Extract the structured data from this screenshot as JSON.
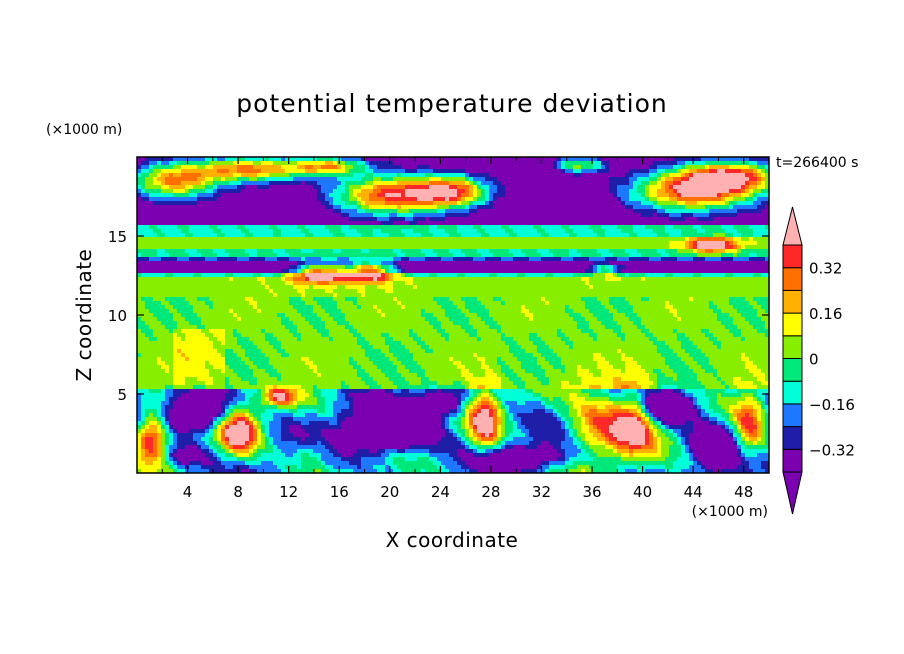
{
  "chart_data": {
    "type": "heatmap",
    "title": "potential temperature deviation",
    "xlabel": "X coordinate",
    "ylabel": "Z coordinate",
    "x_unit": "(×1000 m)",
    "y_unit": "(×1000 m)",
    "time_label": "t=266400 s",
    "xlim": [
      0,
      50
    ],
    "ylim": [
      0,
      20
    ],
    "x_ticks": [
      4,
      8,
      12,
      16,
      20,
      24,
      28,
      32,
      36,
      40,
      44,
      48
    ],
    "y_ticks": [
      5,
      10,
      15
    ],
    "colorbar": {
      "tick_values": [
        0.32,
        0.16,
        0,
        -0.16,
        -0.32
      ],
      "tick_labels": [
        "0.32",
        "0.16",
        "0",
        "−0.16",
        "−0.32"
      ],
      "levels": [
        -0.4,
        -0.32,
        -0.24,
        -0.16,
        -0.08,
        0,
        0.08,
        0.16,
        0.24,
        0.32,
        0.4
      ],
      "colors": [
        "#7a00b0",
        "#1e1ea8",
        "#1e78ff",
        "#00ffd8",
        "#00e87a",
        "#88ee00",
        "#ffff00",
        "#ffb000",
        "#ff7000",
        "#ff2828"
      ],
      "below_color": "#7a00b0",
      "above_color": "#ffb0b0"
    }
  }
}
